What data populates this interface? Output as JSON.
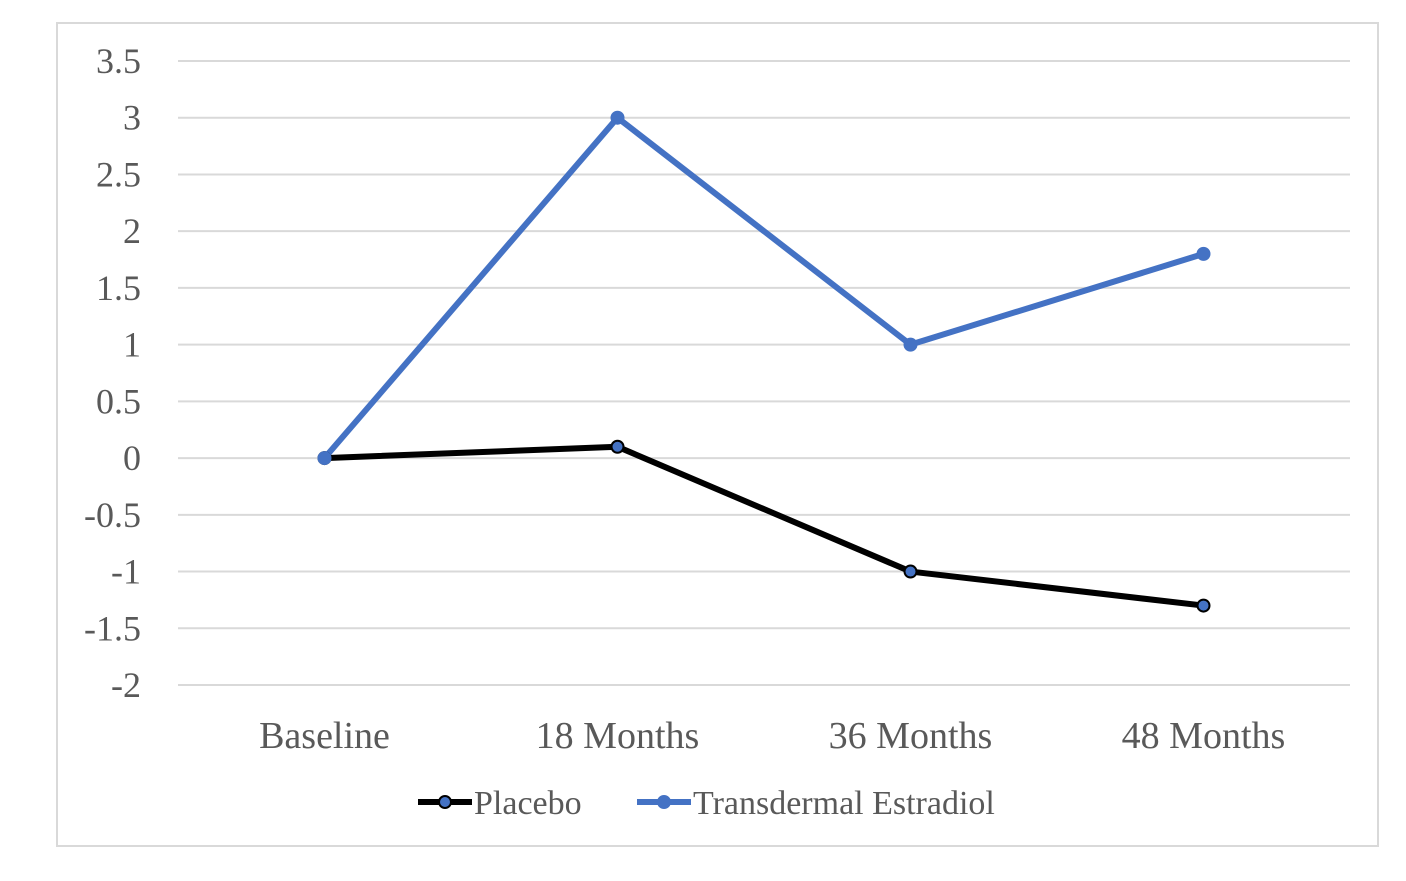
{
  "chart_data": {
    "type": "line",
    "title": "",
    "xlabel": "",
    "ylabel": "",
    "categories": [
      "Baseline",
      "18 Months",
      "36 Months",
      "48 Months"
    ],
    "ylim": [
      -2,
      3.5
    ],
    "yticks": [
      "3.5",
      "3",
      "2.5",
      "2",
      "1.5",
      "1",
      "0.5",
      "0",
      "-0.5",
      "-1",
      "-1.5",
      "-2"
    ],
    "grid": true,
    "legend_position": "bottom",
    "series": [
      {
        "name": "Placebo",
        "values": [
          0,
          0.1,
          -1.0,
          -1.3
        ],
        "color": "#000000",
        "marker_fill": "#4472C4"
      },
      {
        "name": "Transdermal Estradiol",
        "values": [
          0,
          3.0,
          1.0,
          1.8
        ],
        "color": "#4472C4",
        "marker_fill": "#4472C4"
      }
    ]
  }
}
